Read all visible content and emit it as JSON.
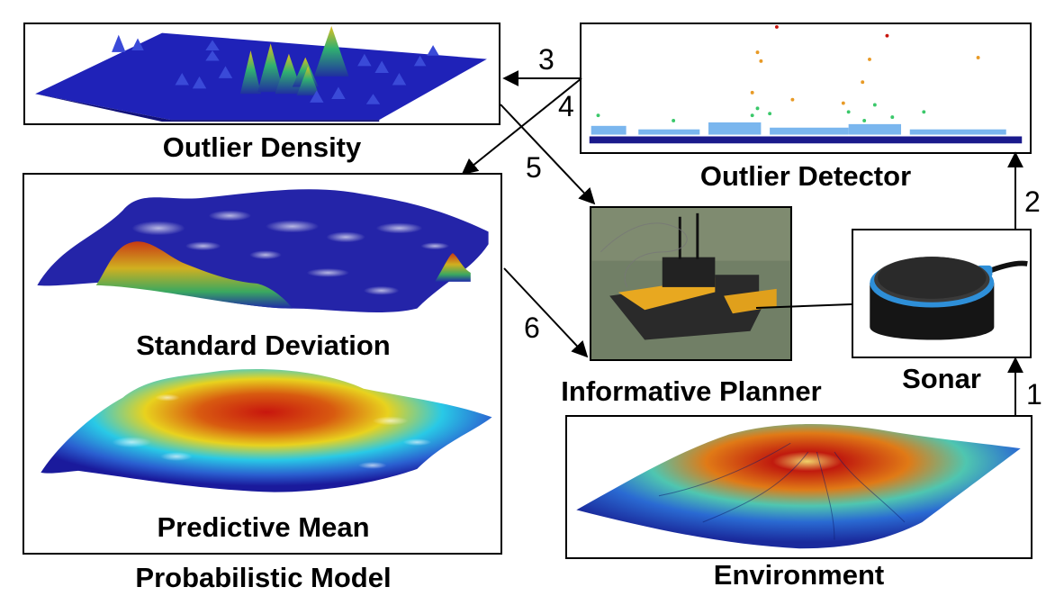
{
  "labels": {
    "outlier_density": "Outlier Density",
    "outlier_detector": "Outlier Detector",
    "standard_deviation": "Standard Deviation",
    "predictive_mean": "Predictive Mean",
    "probabilistic_model": "Probabilistic Model",
    "informative_planner": "Informative Planner",
    "sonar": "Sonar",
    "environment": "Environment"
  },
  "arrows": {
    "step_1": "1",
    "step_2": "2",
    "step_3": "3",
    "step_4": "4",
    "step_5": "5",
    "step_6": "6"
  },
  "colors": {
    "deep_blue": "#1a1a9c",
    "cyan": "#29c9e6",
    "yellow": "#e8d21e",
    "red": "#c8160e"
  }
}
